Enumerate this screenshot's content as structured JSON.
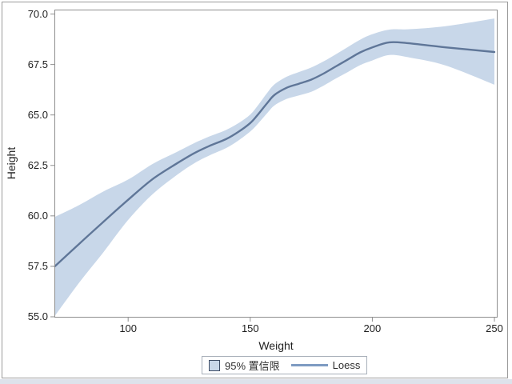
{
  "chart_data": {
    "type": "area",
    "title": "",
    "xlabel": "Weight",
    "ylabel": "Height",
    "x_ticks": [
      100,
      150,
      200,
      250
    ],
    "y_ticks": [
      55.0,
      57.5,
      60.0,
      62.5,
      65.0,
      67.5,
      70.0
    ],
    "xlim": [
      69.8,
      251.3
    ],
    "ylim": [
      54.96,
      70.22
    ],
    "grid": false,
    "legend": {
      "position": "bottom",
      "entries": [
        {
          "label": "95% 置信限",
          "swatch": "band"
        },
        {
          "label": "Loess",
          "swatch": "line"
        }
      ]
    },
    "series": [
      {
        "name": "95% 置信限",
        "type": "band",
        "x": [
          70,
          80,
          90,
          100,
          110,
          120,
          127,
          133,
          140,
          145,
          150,
          153,
          157,
          160,
          165,
          170,
          175,
          180,
          185,
          190,
          195,
          200,
          207,
          215,
          230,
          250
        ],
        "upper": [
          59.95,
          60.54,
          61.22,
          61.8,
          62.57,
          63.17,
          63.6,
          63.92,
          64.25,
          64.58,
          65.02,
          65.45,
          66.1,
          66.52,
          66.9,
          67.13,
          67.35,
          67.65,
          68.0,
          68.37,
          68.73,
          69.0,
          69.23,
          69.25,
          69.4,
          69.78
        ],
        "lower": [
          55.05,
          56.7,
          58.22,
          59.8,
          61.07,
          62.03,
          62.6,
          62.98,
          63.35,
          63.72,
          64.18,
          64.55,
          65.1,
          65.48,
          65.8,
          65.97,
          66.15,
          66.45,
          66.8,
          67.13,
          67.47,
          67.7,
          67.97,
          67.85,
          67.45,
          66.5
        ]
      },
      {
        "name": "Loess",
        "type": "line",
        "x": [
          70,
          80,
          90,
          100,
          110,
          120,
          127,
          133,
          140,
          145,
          150,
          153,
          157,
          160,
          165,
          170,
          175,
          180,
          185,
          190,
          195,
          200,
          207,
          215,
          230,
          250
        ],
        "y": [
          57.5,
          58.62,
          59.72,
          60.8,
          61.82,
          62.6,
          63.1,
          63.45,
          63.8,
          64.15,
          64.6,
          65.0,
          65.6,
          66.0,
          66.35,
          66.55,
          66.75,
          67.05,
          67.4,
          67.75,
          68.1,
          68.35,
          68.6,
          68.55,
          68.35,
          68.12
        ]
      }
    ],
    "colors": {
      "band": "#c8d7e9",
      "line": "#5f7698",
      "legend_line": "#7e9bc2",
      "frame": "#8e8e8e",
      "tick": "#8e8e8e",
      "text": "#1f1f1f",
      "canvas_border": "#9b9b9b",
      "bottom_strip": "#dde2eb"
    }
  }
}
